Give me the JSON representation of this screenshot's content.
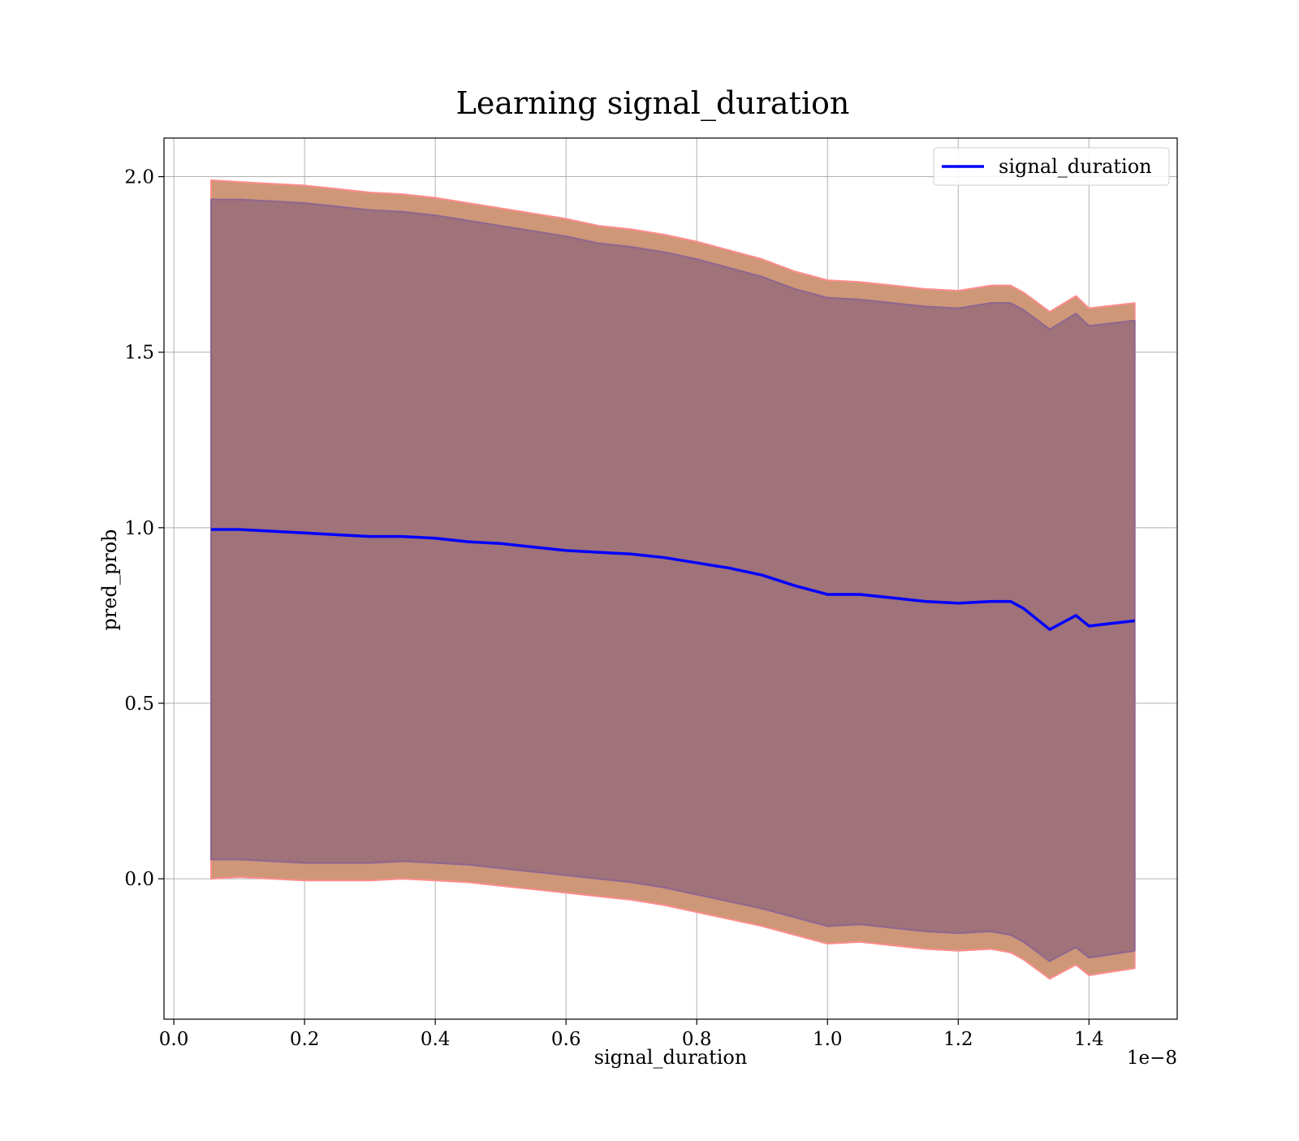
{
  "chart_data": {
    "type": "line",
    "title": "Learning signal_duration",
    "xlabel": "signal_duration",
    "ylabel": "pred_prob",
    "x_offset_label": "1e−8",
    "xlim": [
      -0.015,
      1.535
    ],
    "ylim": [
      -0.4,
      2.11
    ],
    "x_ticks": [
      0.0,
      0.2,
      0.4,
      0.6,
      0.8,
      1.0,
      1.2,
      1.4
    ],
    "x_tick_labels": [
      "0.0",
      "0.2",
      "0.4",
      "0.6",
      "0.8",
      "1.0",
      "1.2",
      "1.4"
    ],
    "y_ticks": [
      0.0,
      0.5,
      1.0,
      1.5,
      2.0
    ],
    "y_tick_labels": [
      "0.0",
      "0.5",
      "1.0",
      "1.5",
      "2.0"
    ],
    "grid": true,
    "legend": {
      "position": "top-right"
    },
    "series": [
      {
        "name": "signal_duration",
        "color": "#0000ff",
        "x": [
          0.057,
          0.1,
          0.15,
          0.2,
          0.25,
          0.3,
          0.35,
          0.4,
          0.45,
          0.5,
          0.55,
          0.6,
          0.65,
          0.7,
          0.75,
          0.8,
          0.85,
          0.9,
          0.95,
          1.0,
          1.05,
          1.1,
          1.15,
          1.2,
          1.25,
          1.28,
          1.3,
          1.34,
          1.38,
          1.4,
          1.47
        ],
        "values": [
          0.995,
          0.995,
          0.99,
          0.985,
          0.98,
          0.975,
          0.975,
          0.97,
          0.96,
          0.955,
          0.945,
          0.935,
          0.93,
          0.925,
          0.915,
          0.9,
          0.885,
          0.865,
          0.835,
          0.81,
          0.81,
          0.8,
          0.79,
          0.785,
          0.79,
          0.79,
          0.77,
          0.71,
          0.75,
          0.72,
          0.735
        ]
      }
    ],
    "bands": [
      {
        "name": "outer",
        "fill": "#cd9778",
        "edge": "#ff8c8c",
        "upper": [
          1.99,
          1.985,
          1.98,
          1.975,
          1.965,
          1.955,
          1.95,
          1.94,
          1.925,
          1.91,
          1.895,
          1.88,
          1.86,
          1.85,
          1.835,
          1.815,
          1.79,
          1.765,
          1.73,
          1.705,
          1.7,
          1.69,
          1.68,
          1.675,
          1.69,
          1.69,
          1.67,
          1.615,
          1.66,
          1.625,
          1.64
        ],
        "lower": [
          0.0,
          0.005,
          0.0,
          -0.005,
          -0.005,
          -0.005,
          0.0,
          -0.005,
          -0.01,
          -0.02,
          -0.03,
          -0.04,
          -0.05,
          -0.06,
          -0.075,
          -0.095,
          -0.115,
          -0.135,
          -0.16,
          -0.185,
          -0.18,
          -0.19,
          -0.2,
          -0.205,
          -0.2,
          -0.21,
          -0.23,
          -0.285,
          -0.245,
          -0.275,
          -0.255
        ]
      },
      {
        "name": "inner",
        "fill": "#a0727a",
        "edge": "#8e6690",
        "upper": [
          1.935,
          1.935,
          1.93,
          1.925,
          1.915,
          1.905,
          1.9,
          1.89,
          1.875,
          1.86,
          1.845,
          1.83,
          1.81,
          1.8,
          1.785,
          1.765,
          1.74,
          1.715,
          1.68,
          1.655,
          1.65,
          1.64,
          1.63,
          1.625,
          1.64,
          1.64,
          1.62,
          1.565,
          1.61,
          1.575,
          1.59
        ],
        "lower": [
          0.055,
          0.055,
          0.05,
          0.045,
          0.045,
          0.045,
          0.05,
          0.045,
          0.04,
          0.03,
          0.02,
          0.01,
          0.0,
          -0.01,
          -0.025,
          -0.045,
          -0.065,
          -0.085,
          -0.11,
          -0.135,
          -0.13,
          -0.14,
          -0.15,
          -0.155,
          -0.15,
          -0.16,
          -0.18,
          -0.235,
          -0.195,
          -0.225,
          -0.205
        ]
      }
    ]
  }
}
